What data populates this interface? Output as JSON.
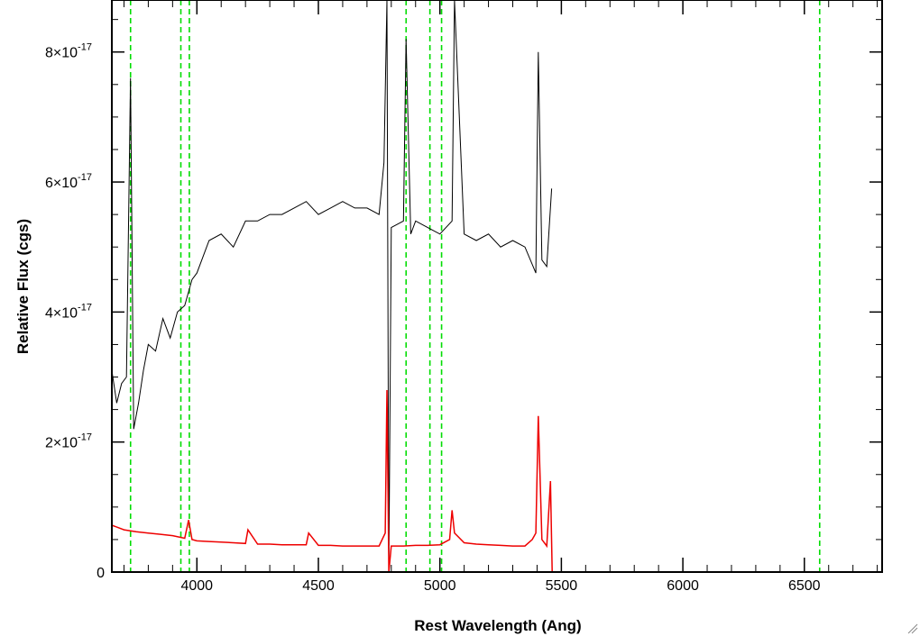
{
  "chart_data": {
    "type": "line",
    "title": "",
    "xlabel": "Rest Wavelength (Ang)",
    "ylabel": "Relative Flux (cgs)",
    "xlim": [
      3650,
      6820
    ],
    "ylim": [
      0,
      8.8e-17
    ],
    "x_ticks": [
      {
        "value": 4000,
        "label": "4000"
      },
      {
        "value": 4500,
        "label": "4500"
      },
      {
        "value": 5000,
        "label": "5000"
      },
      {
        "value": 5500,
        "label": "5500"
      },
      {
        "value": 6000,
        "label": "6000"
      },
      {
        "value": 6500,
        "label": "6500"
      }
    ],
    "x_minor_step": 100,
    "y_ticks": [
      {
        "value": 0,
        "label": "0"
      },
      {
        "value": 2e-17,
        "mantissa": "2",
        "times": "×10",
        "exp": "-17"
      },
      {
        "value": 4e-17,
        "mantissa": "4",
        "times": "×10",
        "exp": "-17"
      },
      {
        "value": 6e-17,
        "mantissa": "6",
        "times": "×10",
        "exp": "-17"
      },
      {
        "value": 8e-17,
        "mantissa": "8",
        "times": "×10",
        "exp": "-17"
      }
    ],
    "y_minor_step": 5e-18,
    "grid": false,
    "legend": "none",
    "reference_lines": {
      "color": "#00dd00",
      "style": "dashed",
      "x": [
        3727,
        3934,
        3969,
        4861,
        4959,
        5007,
        6563
      ]
    },
    "series": [
      {
        "color": "#000000",
        "x": [
          3650,
          3670,
          3690,
          3710,
          3727,
          3740,
          3760,
          3780,
          3800,
          3830,
          3860,
          3890,
          3920,
          3950,
          3980,
          4000,
          4050,
          4100,
          4150,
          4200,
          4250,
          4300,
          4350,
          4400,
          4450,
          4500,
          4550,
          4600,
          4650,
          4700,
          4750,
          4770,
          4782,
          4790,
          4800,
          4850,
          4861,
          4880,
          4900,
          4950,
          5000,
          5050,
          5060,
          5100,
          5150,
          5200,
          5250,
          5300,
          5350,
          5395,
          5405,
          5420,
          5440,
          5460
        ],
        "values": [
          3.1e-17,
          2.6e-17,
          2.9e-17,
          3e-17,
          7.6e-17,
          2.2e-17,
          2.6e-17,
          3.1e-17,
          3.5e-17,
          3.4e-17,
          3.9e-17,
          3.6e-17,
          4e-17,
          4.1e-17,
          4.5e-17,
          4.6e-17,
          5.1e-17,
          5.2e-17,
          5e-17,
          5.4e-17,
          5.4e-17,
          5.5e-17,
          5.5e-17,
          5.6e-17,
          5.7e-17,
          5.5e-17,
          5.6e-17,
          5.7e-17,
          5.6e-17,
          5.6e-17,
          5.5e-17,
          6.3e-17,
          9e-17,
          0.0,
          5.3e-17,
          5.4e-17,
          8.2e-17,
          5.2e-17,
          5.4e-17,
          5.3e-17,
          5.2e-17,
          5.4e-17,
          8.8e-17,
          5.2e-17,
          5.1e-17,
          5.2e-17,
          5e-17,
          5.1e-17,
          5e-17,
          4.6e-17,
          8e-17,
          4.8e-17,
          4.7e-17,
          5.9e-17
        ]
      },
      {
        "color": "#ee0000",
        "x": [
          3650,
          3700,
          3750,
          3800,
          3850,
          3900,
          3950,
          3966,
          3980,
          4000,
          4050,
          4100,
          4150,
          4200,
          4210,
          4250,
          4300,
          4350,
          4400,
          4450,
          4460,
          4500,
          4550,
          4600,
          4650,
          4700,
          4750,
          4775,
          4782,
          4790,
          4800,
          4850,
          4900,
          4950,
          5000,
          5040,
          5050,
          5060,
          5100,
          5150,
          5200,
          5250,
          5300,
          5350,
          5380,
          5395,
          5405,
          5420,
          5440,
          5455,
          5462,
          5470,
          5500,
          6000,
          6500,
          6820
        ],
        "values": [
          7.2e-18,
          6.5e-18,
          6.2e-18,
          6e-18,
          5.8e-18,
          5.6e-18,
          5.2e-18,
          8e-18,
          5e-18,
          4.8e-18,
          4.7e-18,
          4.6e-18,
          4.5e-18,
          4.4e-18,
          6.5e-18,
          4.3e-18,
          4.3e-18,
          4.2e-18,
          4.2e-18,
          4.2e-18,
          6e-18,
          4.1e-18,
          4.1e-18,
          4e-18,
          4e-18,
          4e-18,
          4e-18,
          6e-18,
          2.8e-17,
          0.0,
          4e-18,
          4e-18,
          4.1e-18,
          4.1e-18,
          4.2e-18,
          5e-18,
          9.5e-18,
          6e-18,
          4.5e-18,
          4.3e-18,
          4.2e-18,
          4.1e-18,
          4e-18,
          4e-18,
          5e-18,
          6e-18,
          2.4e-17,
          5e-18,
          4e-18,
          1.4e-17,
          0.0,
          0.0,
          0.0,
          0.0,
          0.0,
          0.0
        ]
      }
    ]
  }
}
